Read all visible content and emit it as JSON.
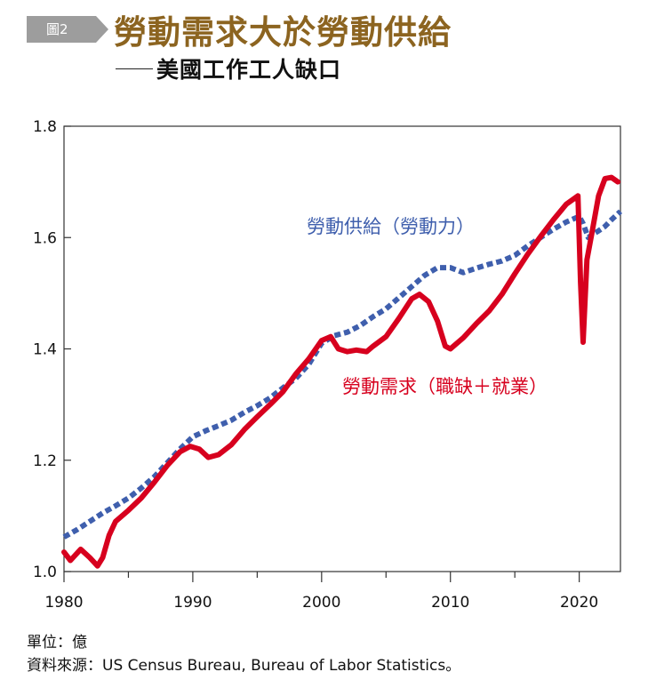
{
  "header": {
    "figure_tag": "圖2",
    "title": "勞動需求大於勞動供給",
    "subtitle": "美國工作工人缺口"
  },
  "footer": {
    "unit": "單位：億",
    "source": "資料來源：US Census Bureau, Bureau of Labor Statistics。"
  },
  "colors": {
    "supply": "#3f5fad",
    "demand": "#d7001e"
  },
  "chart_data": {
    "type": "line",
    "title": "勞動需求大於勞動供給",
    "xlabel": "",
    "ylabel": "",
    "xlim": [
      1980,
      2023.2
    ],
    "ylim": [
      1.0,
      1.8
    ],
    "x_ticks": [
      1980,
      1990,
      2000,
      2010,
      2020
    ],
    "y_ticks": [
      1.0,
      1.2,
      1.4,
      1.6,
      1.8
    ],
    "grid": false,
    "legend": "inline labels",
    "series": [
      {
        "name": "勞動供給（勞動力）",
        "style": "dashed",
        "points": [
          [
            1980,
            1.062
          ],
          [
            1981,
            1.075
          ],
          [
            1982,
            1.09
          ],
          [
            1983,
            1.105
          ],
          [
            1984,
            1.118
          ],
          [
            1985,
            1.132
          ],
          [
            1986,
            1.15
          ],
          [
            1987,
            1.17
          ],
          [
            1988,
            1.195
          ],
          [
            1989,
            1.22
          ],
          [
            1990,
            1.242
          ],
          [
            1991,
            1.253
          ],
          [
            1992,
            1.262
          ],
          [
            1993,
            1.272
          ],
          [
            1994,
            1.286
          ],
          [
            1995,
            1.298
          ],
          [
            1996,
            1.312
          ],
          [
            1997,
            1.33
          ],
          [
            1998,
            1.347
          ],
          [
            1999,
            1.372
          ],
          [
            2000,
            1.41
          ],
          [
            2001,
            1.424
          ],
          [
            2002,
            1.43
          ],
          [
            2003,
            1.442
          ],
          [
            2004,
            1.458
          ],
          [
            2005,
            1.472
          ],
          [
            2006,
            1.492
          ],
          [
            2007,
            1.512
          ],
          [
            2008,
            1.532
          ],
          [
            2009,
            1.546
          ],
          [
            2010,
            1.546
          ],
          [
            2011,
            1.537
          ],
          [
            2012,
            1.545
          ],
          [
            2013,
            1.552
          ],
          [
            2014,
            1.558
          ],
          [
            2015,
            1.568
          ],
          [
            2016,
            1.585
          ],
          [
            2017,
            1.6
          ],
          [
            2018,
            1.615
          ],
          [
            2019,
            1.628
          ],
          [
            2020.0,
            1.638
          ],
          [
            2020.3,
            1.625
          ],
          [
            2020.7,
            1.6
          ],
          [
            2021.0,
            1.605
          ],
          [
            2021.5,
            1.612
          ],
          [
            2022,
            1.62
          ],
          [
            2022.5,
            1.632
          ],
          [
            2023.2,
            1.647
          ]
        ]
      },
      {
        "name": "勞動需求（職缺＋就業）",
        "style": "solid",
        "points": [
          [
            1980,
            1.035
          ],
          [
            1980.5,
            1.02
          ],
          [
            1981.3,
            1.04
          ],
          [
            1982,
            1.025
          ],
          [
            1982.6,
            1.01
          ],
          [
            1983,
            1.025
          ],
          [
            1983.5,
            1.065
          ],
          [
            1984,
            1.09
          ],
          [
            1985,
            1.11
          ],
          [
            1986,
            1.132
          ],
          [
            1987,
            1.16
          ],
          [
            1988,
            1.19
          ],
          [
            1989,
            1.215
          ],
          [
            1989.8,
            1.225
          ],
          [
            1990.5,
            1.22
          ],
          [
            1991.2,
            1.205
          ],
          [
            1992,
            1.21
          ],
          [
            1993,
            1.228
          ],
          [
            1994,
            1.255
          ],
          [
            1995,
            1.278
          ],
          [
            1996,
            1.3
          ],
          [
            1997,
            1.323
          ],
          [
            1998,
            1.355
          ],
          [
            1999,
            1.382
          ],
          [
            2000,
            1.415
          ],
          [
            2000.7,
            1.422
          ],
          [
            2001.3,
            1.4
          ],
          [
            2002,
            1.395
          ],
          [
            2002.7,
            1.398
          ],
          [
            2003.5,
            1.395
          ],
          [
            2004,
            1.405
          ],
          [
            2005,
            1.422
          ],
          [
            2006,
            1.455
          ],
          [
            2007,
            1.49
          ],
          [
            2007.6,
            1.498
          ],
          [
            2008.3,
            1.485
          ],
          [
            2009,
            1.45
          ],
          [
            2009.6,
            1.405
          ],
          [
            2010,
            1.4
          ],
          [
            2011,
            1.42
          ],
          [
            2012,
            1.445
          ],
          [
            2013,
            1.468
          ],
          [
            2014,
            1.498
          ],
          [
            2015,
            1.535
          ],
          [
            2016,
            1.57
          ],
          [
            2017,
            1.602
          ],
          [
            2018,
            1.632
          ],
          [
            2019,
            1.66
          ],
          [
            2019.9,
            1.675
          ],
          [
            2020.1,
            1.52
          ],
          [
            2020.3,
            1.412
          ],
          [
            2020.6,
            1.56
          ],
          [
            2021.0,
            1.61
          ],
          [
            2021.5,
            1.675
          ],
          [
            2022.0,
            1.706
          ],
          [
            2022.5,
            1.708
          ],
          [
            2023.0,
            1.7
          ]
        ]
      }
    ]
  }
}
